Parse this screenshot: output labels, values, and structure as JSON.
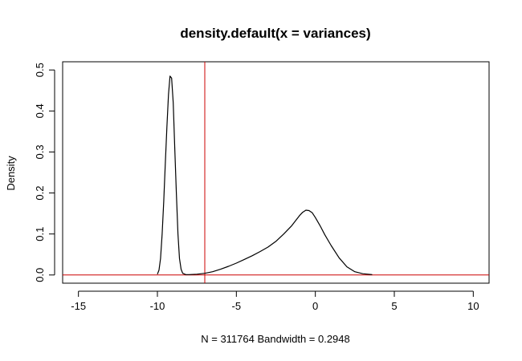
{
  "chart_data": {
    "type": "line",
    "title": "density.default(x = variances)",
    "xlabel": "N = 311764   Bandwidth = 0.2948",
    "ylabel": "Density",
    "xlim": [
      -16,
      11
    ],
    "ylim": [
      -0.02,
      0.52
    ],
    "x_ticks": [
      -15,
      -10,
      -5,
      0,
      5,
      10
    ],
    "x_tick_labels": [
      "-15",
      "-10",
      "-5",
      "0",
      "5",
      "10"
    ],
    "y_ticks": [
      0.0,
      0.1,
      0.2,
      0.3,
      0.4,
      0.5
    ],
    "y_tick_labels": [
      "0.0",
      "0.1",
      "0.2",
      "0.3",
      "0.4",
      "0.5"
    ],
    "grid": false,
    "series": [
      {
        "line_color": "#000000",
        "x": [
          -10.0,
          -9.9,
          -9.8,
          -9.7,
          -9.6,
          -9.5,
          -9.4,
          -9.3,
          -9.2,
          -9.1,
          -9.0,
          -8.9,
          -8.8,
          -8.7,
          -8.6,
          -8.5,
          -8.4,
          -8.2,
          -8.0,
          -7.5,
          -7.0,
          -6.5,
          -6.0,
          -5.5,
          -5.0,
          -4.5,
          -4.0,
          -3.5,
          -3.0,
          -2.5,
          -2.0,
          -1.5,
          -1.2,
          -1.0,
          -0.8,
          -0.6,
          -0.4,
          -0.2,
          0.0,
          0.3,
          0.6,
          1.0,
          1.5,
          2.0,
          2.5,
          3.0,
          3.6
        ],
        "y": [
          0.002,
          0.012,
          0.04,
          0.1,
          0.18,
          0.27,
          0.36,
          0.44,
          0.485,
          0.48,
          0.42,
          0.31,
          0.2,
          0.1,
          0.04,
          0.014,
          0.004,
          0.001,
          0.001,
          0.002,
          0.004,
          0.008,
          0.014,
          0.021,
          0.029,
          0.038,
          0.047,
          0.057,
          0.068,
          0.082,
          0.1,
          0.12,
          0.135,
          0.145,
          0.153,
          0.158,
          0.157,
          0.152,
          0.14,
          0.12,
          0.098,
          0.072,
          0.042,
          0.02,
          0.008,
          0.003,
          0.001
        ]
      }
    ],
    "reference_lines": [
      {
        "orientation": "vertical",
        "value": -7.0,
        "color": "#cc0000"
      },
      {
        "orientation": "horizontal",
        "value": 0.0,
        "color": "#cc0000"
      }
    ]
  }
}
